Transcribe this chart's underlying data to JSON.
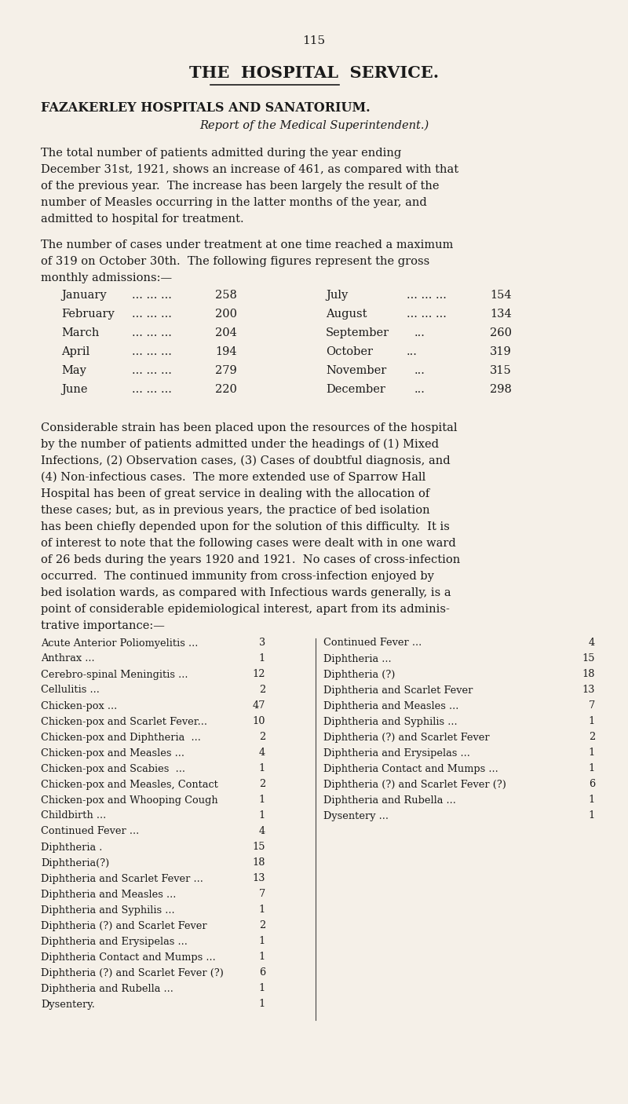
{
  "background_color": "#f5f0e8",
  "page_number": "115",
  "title_main": "THE  HOSPITAL  SERVICE.",
  "title_sub": "FAZAKERLEY HOSPITALS AND SANATORIUM.",
  "subtitle": "Report of the Medical Superintendent.)",
  "para1_lines": [
    "The total number of patients admitted during the year ending",
    "December 31st, 1921, shows an increase of 461, as compared with that",
    "of the previous year.  The increase has been largely the result of the",
    "number of Measles occurring in the latter months of the year, and",
    "admitted to hospital for treatment."
  ],
  "para2_lines": [
    "The number of cases under treatment at one time reached a maximum",
    "of 319 on October 30th.  The following figures represent the gross",
    "monthly admissions:—"
  ],
  "monthly_left": [
    [
      "January",
      "258"
    ],
    [
      "February",
      "200"
    ],
    [
      "March",
      "204"
    ],
    [
      "April",
      "194"
    ],
    [
      "May",
      "279"
    ],
    [
      "June",
      "220"
    ]
  ],
  "monthly_right": [
    [
      "July",
      "154"
    ],
    [
      "August",
      "134"
    ],
    [
      "September",
      "260"
    ],
    [
      "October",
      "319"
    ],
    [
      "November",
      "315"
    ],
    [
      "December",
      "298"
    ]
  ],
  "para3_lines": [
    "Considerable strain has been placed upon the resources of the hospital",
    "by the number of patients admitted under the headings of (1) Mixed",
    "Infections, (2) Observation cases, (3) Cases of doubtful diagnosis, and",
    "(4) Non-infectious cases.  The more extended use of Sparrow Hall",
    "Hospital has been of great service in dealing with the allocation of",
    "these cases; but, as in previous years, the practice of bed isolation",
    "has been chiefly depended upon for the solution of this difficulty.  It is",
    "of interest to note that the following cases were dealt with in one ward",
    "of 26 beds during the years 1920 and 1921.  No cases of cross-infection",
    "occurred.  The continued immunity from cross-infection enjoyed by",
    "bed isolation wards, as compared with Infectious wards generally, is a",
    "point of considerable epidemiological interest, apart from its adminis-",
    "trative importance:—"
  ],
  "cases_left": [
    [
      "Acute Anterior Poliomyelitis ...",
      "3"
    ],
    [
      "Anthrax ...",
      "1"
    ],
    [
      "Cerebro-spinal Meningitis ...",
      "12"
    ],
    [
      "Cellulitis ...",
      "2"
    ],
    [
      "Chicken-pox ...",
      "47"
    ],
    [
      "Chicken-pox and Scarlet Fever...",
      "10"
    ],
    [
      "Chicken-pox and Diphtheria  ...",
      "2"
    ],
    [
      "Chicken-pox and Measles ...",
      "4"
    ],
    [
      "Chicken-pox and Scabies  ...",
      "1"
    ],
    [
      "Chicken-pox and Measles, Contact",
      "2"
    ],
    [
      "Chicken-pox and Whooping Cough",
      "1"
    ],
    [
      "Childbirth ...",
      "1"
    ],
    [
      "Continued Fever ...",
      "4"
    ],
    [
      "Diphtheria .",
      "15"
    ],
    [
      "Diphtheria(?)",
      "18"
    ],
    [
      "Diphtheria and Scarlet Fever ...",
      "13"
    ],
    [
      "Diphtheria and Measles ...",
      "7"
    ],
    [
      "Diphtheria and Syphilis ...",
      "1"
    ],
    [
      "Diphtheria (?) and Scarlet Fever",
      "2"
    ],
    [
      "Diphtheria and Erysipelas ...",
      "1"
    ],
    [
      "Diphtheria Contact and Mumps ...",
      "1"
    ],
    [
      "Diphtheria (?) and Scarlet Fever (?)",
      "6"
    ],
    [
      "Diphtheria and Rubella ...",
      "1"
    ],
    [
      "Dysentery.",
      "1"
    ]
  ],
  "cases_right": [
    [
      "Continued Fever ...",
      "4"
    ],
    [
      "Diphtheria ...",
      "15"
    ],
    [
      "Diphtheria (?)",
      "18"
    ],
    [
      "Diphtheria and Scarlet Fever",
      "13"
    ],
    [
      "Diphtheria and Measles ...",
      "7"
    ],
    [
      "Diphtheria and Syphilis ...",
      "1"
    ],
    [
      "Diphtheria (?) and Scarlet Fever",
      "2"
    ],
    [
      "Diphtheria and Erysipelas ...",
      "1"
    ],
    [
      "Diphtheria Contact and Mumps ...",
      "1"
    ],
    [
      "Diphtheria (?) and Scarlet Fever (?)",
      "6"
    ],
    [
      "Diphtheria and Rubella ...",
      "1"
    ],
    [
      "Dysentery ...",
      "1"
    ]
  ]
}
